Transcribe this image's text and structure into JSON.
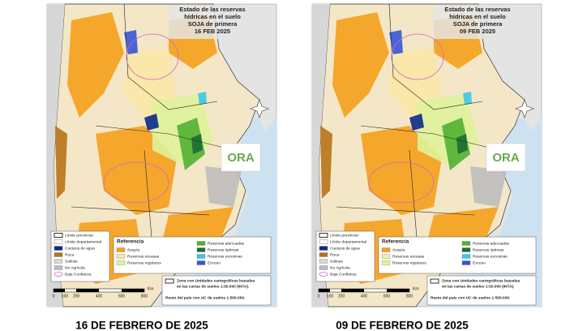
{
  "panels": [
    {
      "title": [
        "Estado de las reservas",
        "hídricas en el suelo",
        "SOJA de primera",
        "16 FEB 2025"
      ],
      "caption": "16 DE FEBRERO DE 2025"
    },
    {
      "title": [
        "Estado de las reservas",
        "hídricas en el suelo",
        "SOJA de primera",
        "09 FEB 2025"
      ],
      "caption": "09 DE FEBRERO DE 2025"
    }
  ],
  "logo": "ORA",
  "legend": [
    "Límite provincial",
    "Límite departamental",
    "Cuerpos de agua",
    "Roca",
    "Salinas",
    "No Agrícola",
    "Baja Confianza"
  ],
  "reference": {
    "title": "Referencia",
    "items": [
      "Sequía",
      "Reservas escasas",
      "Reservas regulares",
      "Reservas adecuadas",
      "Reservas óptimas",
      "Reservas excesivas",
      "Exceso"
    ]
  },
  "zone_note": [
    "Zona con Unidades cartográficas basadas",
    "en las cartas de suelos 1:50.000 (INTA).",
    "Resto del país con UC de suelos 1:500.000."
  ],
  "scale_bar": {
    "labels": [
      "0",
      "100",
      "200",
      "400",
      "600",
      "800"
    ],
    "unit": "Km"
  }
}
